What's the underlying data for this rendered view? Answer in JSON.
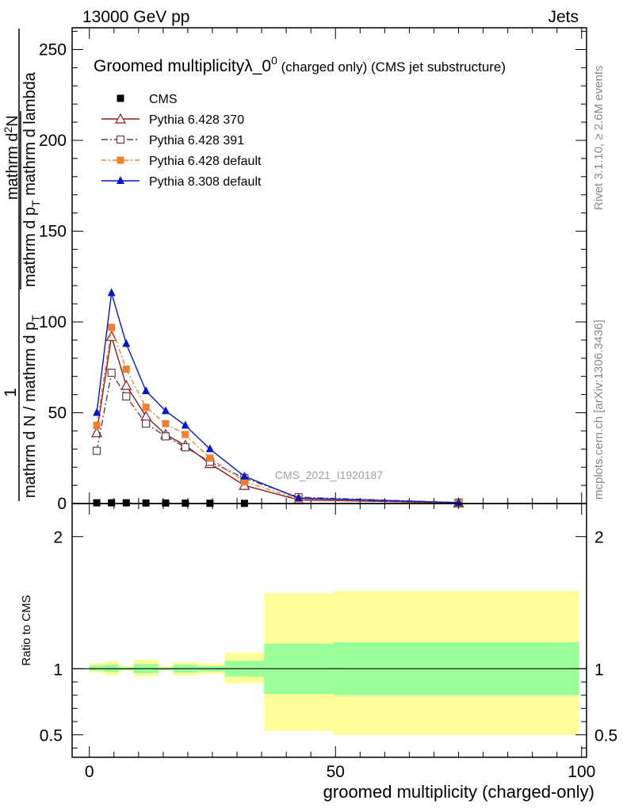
{
  "header": {
    "left": "13000 GeV pp",
    "right": "Jets"
  },
  "side_labels": {
    "rivet": "Rivet 3.1.10, ≥ 2.6M events",
    "mcplots": "mcplots.cern.ch [arXiv:1306.3436]"
  },
  "chart_data": [
    {
      "type": "line",
      "title_main": "Groomed multiplicityλ_0",
      "title_sup": "0",
      "title_tail": " (charged only) (CMS jet substructure)",
      "ylabel_numerator": "1",
      "ylabel_denominator": "mathrm d N / mathrm d p",
      "ylabel_denominator_sub": "T",
      "ylabel_right_numerator": "mathrm d",
      "ylabel_right_numerator_sup": "2",
      "ylabel_right_numerator_tail": "N",
      "ylabel_right_denominator": "mathrm d p",
      "ylabel_right_denominator_sub": "T",
      "ylabel_right_denominator_tail": " mathrm d lambda",
      "watermark": "CMS_2021_I1920187",
      "xlim": [
        -3.5,
        101
      ],
      "ylim": [
        0,
        262
      ],
      "yticks": [
        0,
        50,
        100,
        150,
        200,
        250
      ],
      "yticks_labels": [
        "0",
        "50",
        "100",
        "150",
        "200",
        "250"
      ],
      "legend_position": "top-left",
      "series": [
        {
          "name": "CMS",
          "color": "#000000",
          "marker": "filled-square",
          "x": [
            1.5,
            4.5,
            7.5,
            11.5,
            15.5,
            19.5,
            24.5,
            31.5
          ],
          "y": [
            0.4,
            0.4,
            0.4,
            0.3,
            0.3,
            0.2,
            0.15,
            0.1
          ]
        },
        {
          "name": "Pythia 6.428 370",
          "color": "#8b1a1a",
          "marker": "open-triangle",
          "dash": "",
          "x": [
            1.5,
            4.5,
            7.5,
            11.5,
            15.5,
            19.5,
            24.5,
            31.5,
            42.5,
            75
          ],
          "y": [
            39,
            92,
            65,
            48,
            38,
            32,
            22,
            10,
            2,
            0.3
          ]
        },
        {
          "name": "Pythia 6.428 391",
          "color": "#6b3a4a",
          "marker": "open-square",
          "dash": "8,3,2,3",
          "x": [
            1.5,
            4.5,
            7.5,
            11.5,
            15.5,
            19.5,
            24.5,
            31.5,
            42.5,
            75
          ],
          "y": [
            29,
            72,
            59,
            44,
            37,
            31,
            23,
            14,
            3.5,
            0.5
          ]
        },
        {
          "name": "Pythia 6.428 default",
          "color": "#f08030",
          "marker": "filled-square",
          "dash": "6,3,2,3",
          "x": [
            1.5,
            4.5,
            7.5,
            11.5,
            15.5,
            19.5,
            24.5,
            31.5,
            42.5,
            75
          ],
          "y": [
            43,
            97,
            74,
            53,
            44,
            38,
            25,
            12,
            2.5,
            0.4
          ]
        },
        {
          "name": "Pythia 8.308 default",
          "color": "#0018c8",
          "marker": "filled-triangle",
          "dash": "",
          "x": [
            1.5,
            4.5,
            7.5,
            11.5,
            15.5,
            19.5,
            24.5,
            31.5,
            42.5,
            75
          ],
          "y": [
            50,
            116,
            88,
            62,
            51,
            43,
            30,
            15,
            3,
            0.5
          ]
        }
      ]
    },
    {
      "type": "area",
      "ylabel": "Ratio to CMS",
      "xlabel": "groomed multiplicity (charged-only)",
      "xlim": [
        -3.5,
        101
      ],
      "ylim": [
        0.33,
        2.25
      ],
      "xticks": [
        0,
        50,
        100
      ],
      "xticks_labels": [
        "0",
        "50",
        "100"
      ],
      "yticks": [
        0.5,
        1,
        2
      ],
      "yticks_labels": [
        "0.5",
        "1",
        "2"
      ],
      "reference_line": 1,
      "band_colors": {
        "outer": "#ffff99",
        "inner": "#99ff99"
      },
      "bins": [
        {
          "x0": 0,
          "x1": 3,
          "outer": [
            0.97,
            1.04
          ],
          "inner": [
            0.985,
            1.025
          ]
        },
        {
          "x0": 3,
          "x1": 6,
          "outer": [
            0.95,
            1.06
          ],
          "inner": [
            0.975,
            1.03
          ]
        },
        {
          "x0": 6,
          "x1": 9,
          "outer": [
            0.985,
            1.02
          ],
          "inner": [
            0.99,
            1.01
          ]
        },
        {
          "x0": 9,
          "x1": 14,
          "outer": [
            0.94,
            1.07
          ],
          "inner": [
            0.965,
            1.035
          ]
        },
        {
          "x0": 14,
          "x1": 17,
          "outer": [
            0.985,
            1.02
          ],
          "inner": [
            0.99,
            1.01
          ]
        },
        {
          "x0": 17,
          "x1": 22,
          "outer": [
            0.95,
            1.05
          ],
          "inner": [
            0.97,
            1.03
          ]
        },
        {
          "x0": 22,
          "x1": 27.5,
          "outer": [
            0.96,
            1.04
          ],
          "inner": [
            0.98,
            1.02
          ]
        },
        {
          "x0": 27.5,
          "x1": 35.5,
          "outer": [
            0.89,
            1.12
          ],
          "inner": [
            0.94,
            1.06
          ]
        },
        {
          "x0": 35.5,
          "x1": 49.5,
          "outer": [
            0.53,
            1.57
          ],
          "inner": [
            0.81,
            1.19
          ]
        },
        {
          "x0": 49.5,
          "x1": 99.5,
          "outer": [
            0.5,
            1.59
          ],
          "inner": [
            0.8,
            1.2
          ]
        }
      ]
    }
  ]
}
